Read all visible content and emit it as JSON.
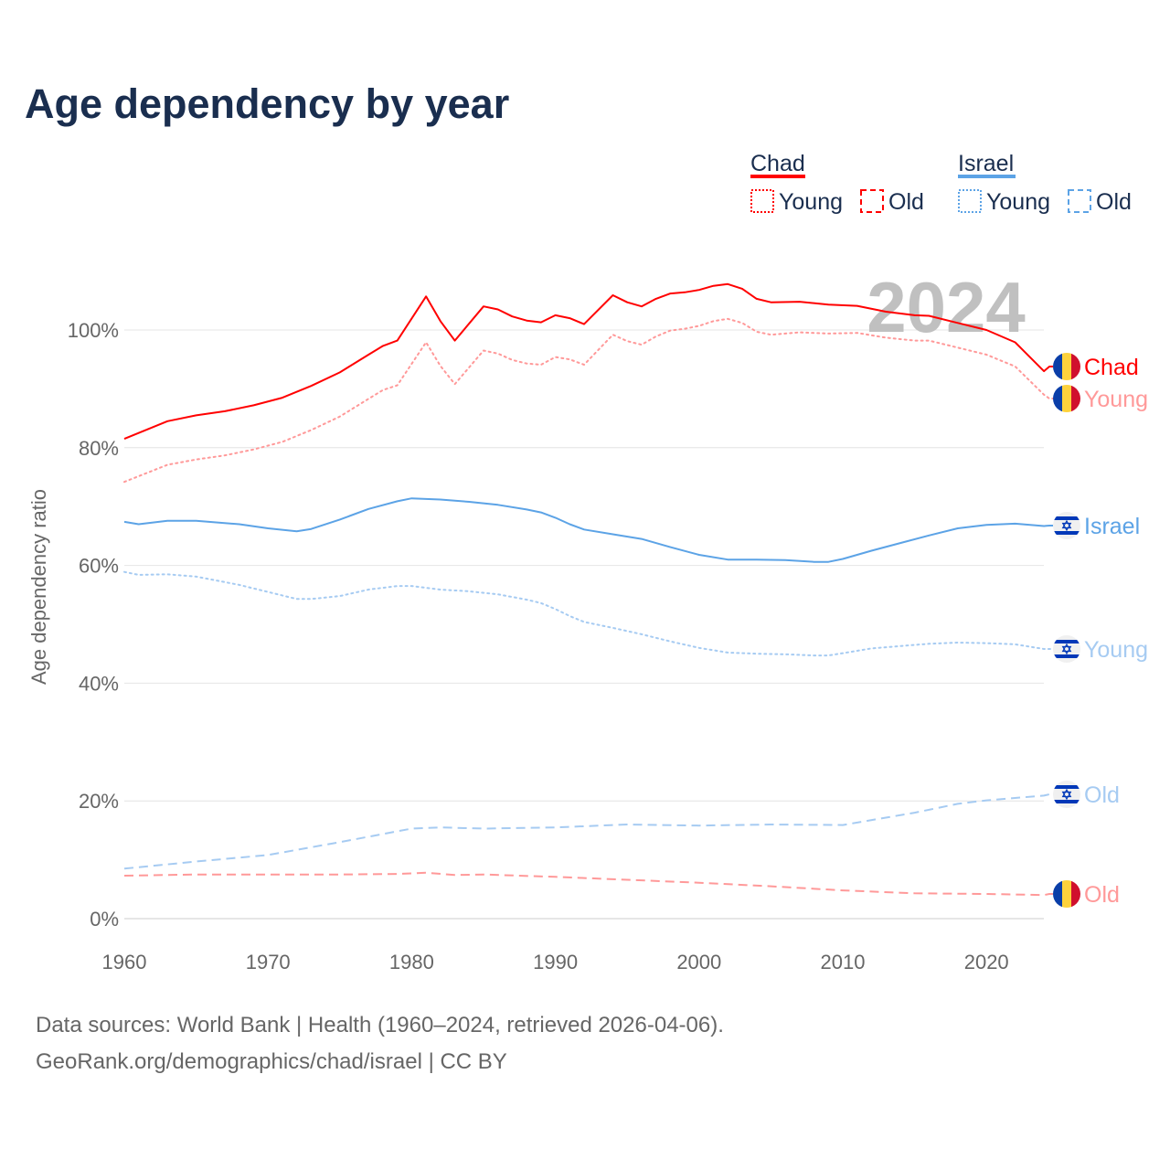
{
  "title": "Age dependency by year",
  "footer": {
    "line1": "Data sources: World Bank | Health (1960–2024, retrieved 2026-04-06).",
    "line2": "GeoRank.org/demographics/chad/israel | CC BY"
  },
  "legend": {
    "groups": [
      {
        "name": "Chad",
        "color": "#ff0000",
        "young": "Young",
        "old": "Old"
      },
      {
        "name": "Israel",
        "color": "#5ca3e6",
        "young": "Young",
        "old": "Old"
      }
    ]
  },
  "year_label": "2024",
  "end_labels": {
    "chad_total": "Chad",
    "chad_young": "Young",
    "chad_old": "Old",
    "israel_total": "Israel",
    "israel_young": "Young",
    "israel_old": "Old"
  },
  "chart_data": {
    "type": "line",
    "title": "Age dependency by year",
    "xlabel": "",
    "ylabel": "Age dependency ratio",
    "xlim": [
      1960,
      2024
    ],
    "ylim": [
      0,
      110
    ],
    "x_ticks": [
      "1960",
      "1970",
      "1980",
      "1990",
      "2000",
      "2010",
      "2020"
    ],
    "y_ticks": [
      "0%",
      "20%",
      "40%",
      "60%",
      "80%",
      "100%"
    ],
    "grid": true,
    "legend_position": "top-right",
    "series": [
      {
        "id": "chad_total",
        "name": "Chad",
        "color": "#ff0000",
        "style": "solid",
        "points": [
          [
            1960,
            81.5
          ],
          [
            1963,
            84.5
          ],
          [
            1965,
            85.5
          ],
          [
            1967,
            86.2
          ],
          [
            1969,
            87.2
          ],
          [
            1971,
            88.5
          ],
          [
            1973,
            90.5
          ],
          [
            1975,
            92.8
          ],
          [
            1977,
            95.8
          ],
          [
            1978,
            97.3
          ],
          [
            1979,
            98.2
          ],
          [
            1981,
            105.7
          ],
          [
            1982,
            101.5
          ],
          [
            1983,
            98.2
          ],
          [
            1985,
            104
          ],
          [
            1986,
            103.5
          ],
          [
            1987,
            102.3
          ],
          [
            1988,
            101.6
          ],
          [
            1989,
            101.3
          ],
          [
            1990,
            102.5
          ],
          [
            1991,
            102
          ],
          [
            1992,
            101
          ],
          [
            1994,
            105.9
          ],
          [
            1995,
            104.7
          ],
          [
            1996,
            104
          ],
          [
            1997,
            105.3
          ],
          [
            1998,
            106.2
          ],
          [
            1999,
            106.4
          ],
          [
            2000,
            106.8
          ],
          [
            2001,
            107.5
          ],
          [
            2002,
            107.8
          ],
          [
            2003,
            107
          ],
          [
            2004,
            105.3
          ],
          [
            2005,
            104.7
          ],
          [
            2007,
            104.8
          ],
          [
            2009,
            104.3
          ],
          [
            2011,
            104.1
          ],
          [
            2013,
            103.1
          ],
          [
            2015,
            102.5
          ],
          [
            2016,
            102.4
          ],
          [
            2018,
            101.2
          ],
          [
            2020,
            100
          ],
          [
            2022,
            97.9
          ],
          [
            2024,
            93
          ]
        ]
      },
      {
        "id": "chad_young",
        "name": "Chad Young",
        "color": "#ff9999",
        "style": "dotted",
        "points": [
          [
            1960,
            74.2
          ],
          [
            1963,
            77.1
          ],
          [
            1965,
            78
          ],
          [
            1967,
            78.7
          ],
          [
            1969,
            79.7
          ],
          [
            1971,
            81
          ],
          [
            1973,
            83
          ],
          [
            1975,
            85.3
          ],
          [
            1977,
            88.3
          ],
          [
            1978,
            89.8
          ],
          [
            1979,
            90.6
          ],
          [
            1981,
            97.9
          ],
          [
            1982,
            93.9
          ],
          [
            1983,
            90.8
          ],
          [
            1985,
            96.5
          ],
          [
            1986,
            96
          ],
          [
            1987,
            94.9
          ],
          [
            1988,
            94.3
          ],
          [
            1989,
            94.1
          ],
          [
            1990,
            95.4
          ],
          [
            1991,
            95
          ],
          [
            1992,
            94.1
          ],
          [
            1994,
            99.2
          ],
          [
            1995,
            98.1
          ],
          [
            1996,
            97.5
          ],
          [
            1997,
            98.9
          ],
          [
            1998,
            99.9
          ],
          [
            1999,
            100.2
          ],
          [
            2000,
            100.7
          ],
          [
            2001,
            101.5
          ],
          [
            2002,
            101.9
          ],
          [
            2003,
            101.2
          ],
          [
            2004,
            99.7
          ],
          [
            2005,
            99.2
          ],
          [
            2007,
            99.6
          ],
          [
            2009,
            99.4
          ],
          [
            2011,
            99.5
          ],
          [
            2013,
            98.7
          ],
          [
            2015,
            98.2
          ],
          [
            2016,
            98.2
          ],
          [
            2018,
            97
          ],
          [
            2020,
            95.8
          ],
          [
            2022,
            93.8
          ],
          [
            2024,
            89
          ]
        ]
      },
      {
        "id": "chad_old",
        "name": "Chad Old",
        "color": "#ff9999",
        "style": "dashed",
        "points": [
          [
            1960,
            7.3
          ],
          [
            1965,
            7.5
          ],
          [
            1975,
            7.5
          ],
          [
            1979,
            7.6
          ],
          [
            1981,
            7.8
          ],
          [
            1983,
            7.4
          ],
          [
            1985,
            7.5
          ],
          [
            1990,
            7.1
          ],
          [
            1995,
            6.6
          ],
          [
            2000,
            6.1
          ],
          [
            2005,
            5.5
          ],
          [
            2010,
            4.8
          ],
          [
            2015,
            4.3
          ],
          [
            2020,
            4.2
          ],
          [
            2024,
            4.0
          ]
        ]
      },
      {
        "id": "israel_total",
        "name": "Israel",
        "color": "#5ca3e6",
        "style": "solid",
        "points": [
          [
            1960,
            67.4
          ],
          [
            1961,
            67
          ],
          [
            1963,
            67.6
          ],
          [
            1965,
            67.6
          ],
          [
            1968,
            67
          ],
          [
            1970,
            66.3
          ],
          [
            1972,
            65.8
          ],
          [
            1973,
            66.2
          ],
          [
            1975,
            67.8
          ],
          [
            1977,
            69.6
          ],
          [
            1979,
            70.9
          ],
          [
            1980,
            71.4
          ],
          [
            1982,
            71.2
          ],
          [
            1984,
            70.8
          ],
          [
            1986,
            70.3
          ],
          [
            1988,
            69.5
          ],
          [
            1989,
            69
          ],
          [
            1990,
            68.1
          ],
          [
            1991,
            67
          ],
          [
            1992,
            66.1
          ],
          [
            1994,
            65.3
          ],
          [
            1996,
            64.5
          ],
          [
            1998,
            63.1
          ],
          [
            2000,
            61.8
          ],
          [
            2002,
            61
          ],
          [
            2004,
            61
          ],
          [
            2006,
            60.9
          ],
          [
            2008,
            60.6
          ],
          [
            2009,
            60.6
          ],
          [
            2010,
            61.1
          ],
          [
            2012,
            62.5
          ],
          [
            2014,
            63.8
          ],
          [
            2016,
            65.1
          ],
          [
            2018,
            66.3
          ],
          [
            2020,
            66.9
          ],
          [
            2022,
            67.1
          ],
          [
            2024,
            66.7
          ]
        ]
      },
      {
        "id": "israel_young",
        "name": "Israel Young",
        "color": "#a6cbf2",
        "style": "dotted",
        "points": [
          [
            1960,
            58.9
          ],
          [
            1961,
            58.4
          ],
          [
            1963,
            58.5
          ],
          [
            1965,
            58.1
          ],
          [
            1968,
            56.7
          ],
          [
            1970,
            55.5
          ],
          [
            1972,
            54.3
          ],
          [
            1973,
            54.3
          ],
          [
            1975,
            54.8
          ],
          [
            1977,
            55.9
          ],
          [
            1979,
            56.5
          ],
          [
            1980,
            56.5
          ],
          [
            1982,
            55.9
          ],
          [
            1984,
            55.6
          ],
          [
            1986,
            55.1
          ],
          [
            1988,
            54.2
          ],
          [
            1989,
            53.6
          ],
          [
            1990,
            52.6
          ],
          [
            1991,
            51.4
          ],
          [
            1992,
            50.4
          ],
          [
            1994,
            49.4
          ],
          [
            1996,
            48.3
          ],
          [
            1998,
            47.1
          ],
          [
            2000,
            46
          ],
          [
            2002,
            45.2
          ],
          [
            2004,
            45
          ],
          [
            2006,
            44.9
          ],
          [
            2008,
            44.7
          ],
          [
            2009,
            44.7
          ],
          [
            2010,
            45.1
          ],
          [
            2012,
            45.9
          ],
          [
            2014,
            46.3
          ],
          [
            2016,
            46.7
          ],
          [
            2018,
            46.9
          ],
          [
            2020,
            46.8
          ],
          [
            2022,
            46.6
          ],
          [
            2024,
            45.8
          ]
        ]
      },
      {
        "id": "israel_old",
        "name": "Israel Old",
        "color": "#a6cbf2",
        "style": "dashed",
        "points": [
          [
            1960,
            8.5
          ],
          [
            1965,
            9.7
          ],
          [
            1970,
            10.8
          ],
          [
            1975,
            13
          ],
          [
            1980,
            15.3
          ],
          [
            1982,
            15.5
          ],
          [
            1985,
            15.3
          ],
          [
            1990,
            15.5
          ],
          [
            1995,
            16
          ],
          [
            2000,
            15.8
          ],
          [
            2005,
            16
          ],
          [
            2010,
            15.9
          ],
          [
            2015,
            18
          ],
          [
            2018,
            19.5
          ],
          [
            2020,
            20.1
          ],
          [
            2024,
            20.9
          ]
        ]
      }
    ]
  }
}
